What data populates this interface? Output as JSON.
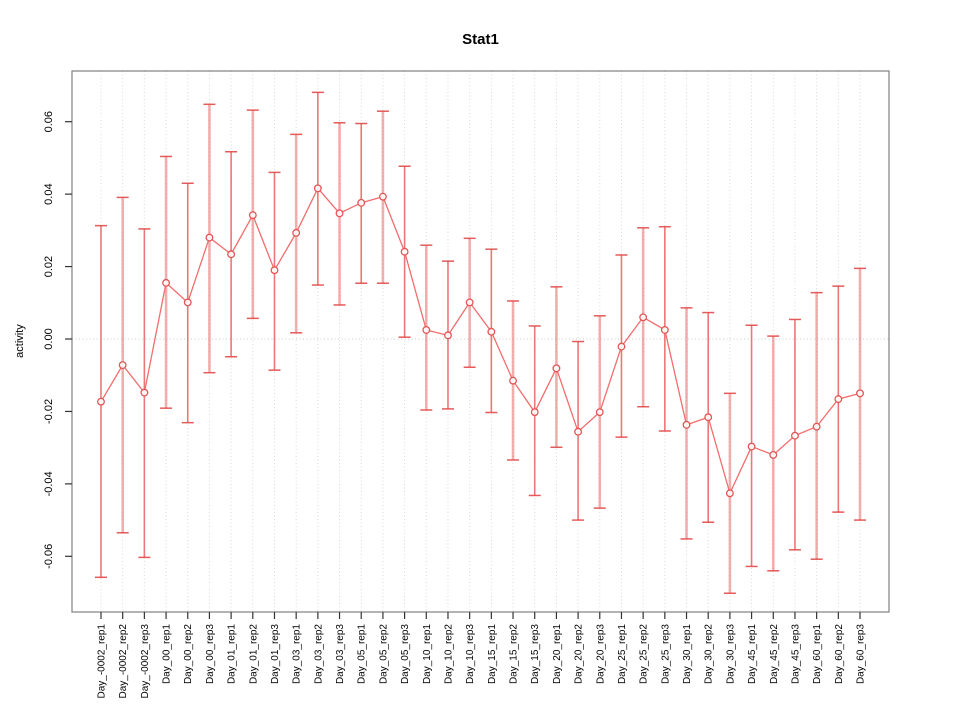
{
  "window": {
    "background": "#ffffff"
  },
  "chart_data": {
    "type": "scatter",
    "subtype": "points-with-error-bars-connected-by-line",
    "title": "Stat1",
    "xlabel": "",
    "ylabel": "activity",
    "ylim": [
      -0.0754,
      0.074
    ],
    "grid": "vertical dotted gridline at every category; dotted horizontal reference line at y=0; no legend",
    "legend_position": "none",
    "ytick_values": [
      -0.06,
      -0.04,
      -0.02,
      0.0,
      0.02,
      0.04,
      0.06
    ],
    "ytick_labels": [
      "-0.06",
      "-0.04",
      "-0.02",
      "0.00",
      "0.02",
      "0.04",
      "0.06"
    ],
    "categories": [
      "Day_-0002_rep1",
      "Day_-0002_rep2",
      "Day_-0002_rep3",
      "Day_00_rep1",
      "Day_00_rep2",
      "Day_00_rep3",
      "Day_01_rep1",
      "Day_01_rep2",
      "Day_01_rep3",
      "Day_03_rep1",
      "Day_03_rep2",
      "Day_03_rep3",
      "Day_05_rep1",
      "Day_05_rep2",
      "Day_05_rep3",
      "Day_10_rep1",
      "Day_10_rep2",
      "Day_10_rep3",
      "Day_15_rep1",
      "Day_15_rep2",
      "Day_15_rep3",
      "Day_20_rep1",
      "Day_20_rep2",
      "Day_20_rep3",
      "Day_25_rep1",
      "Day_25_rep2",
      "Day_25_rep3",
      "Day_30_rep1",
      "Day_30_rep2",
      "Day_30_rep3",
      "Day_45_rep1",
      "Day_45_rep2",
      "Day_45_rep3",
      "Day_60_rep1",
      "Day_60_rep2",
      "Day_60_rep3"
    ],
    "series": [
      {
        "name": "activity",
        "values": [
          -0.0173,
          -0.0072,
          -0.0148,
          0.0155,
          0.0101,
          0.028,
          0.0234,
          0.0342,
          0.019,
          0.0293,
          0.0416,
          0.0347,
          0.0376,
          0.0393,
          0.0241,
          0.0025,
          0.001,
          0.0101,
          0.002,
          -0.0115,
          -0.0202,
          -0.0081,
          -0.0256,
          -0.0202,
          -0.0021,
          0.006,
          0.0025,
          -0.0237,
          -0.0216,
          -0.0426,
          -0.0297,
          -0.032,
          -0.0267,
          -0.0242,
          -0.0166,
          -0.015
        ],
        "err_high": [
          0.0313,
          0.0391,
          0.0304,
          0.0504,
          0.043,
          0.0648,
          0.0517,
          0.0632,
          0.046,
          0.0565,
          0.0681,
          0.0597,
          0.0595,
          0.0629,
          0.0477,
          0.0259,
          0.0215,
          0.0278,
          0.0248,
          0.0105,
          0.0036,
          0.0144,
          -0.0007,
          0.0064,
          0.0232,
          0.0307,
          0.031,
          0.0086,
          0.0073,
          -0.015,
          0.0038,
          0.0008,
          0.0054,
          0.0128,
          0.0146,
          0.0195
        ],
        "err_low": [
          -0.0658,
          -0.0535,
          -0.0603,
          -0.0191,
          -0.0231,
          -0.0093,
          -0.0049,
          0.0057,
          -0.0086,
          0.0017,
          0.0149,
          0.0094,
          0.0154,
          0.0154,
          0.0005,
          -0.0196,
          -0.0193,
          -0.0078,
          -0.0203,
          -0.0334,
          -0.0432,
          -0.0299,
          -0.05,
          -0.0467,
          -0.0271,
          -0.0187,
          -0.0254,
          -0.0552,
          -0.0506,
          -0.0702,
          -0.0628,
          -0.064,
          -0.0582,
          -0.0608,
          -0.0478,
          -0.05
        ]
      }
    ],
    "colors": {
      "point_stroke": "#e25555",
      "line": "#f26d6d",
      "errorbar_shaft": "#ea6060",
      "errorbar_cap": "#e24848",
      "gridline": "#d9d9d9",
      "zero_line": "#c9c9c9",
      "plot_border": "#808080",
      "tick": "#333333",
      "text": "#000000"
    }
  }
}
